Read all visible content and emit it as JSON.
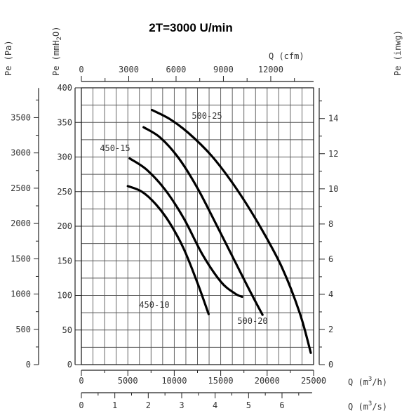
{
  "chart_data": {
    "type": "line",
    "title": "2T=3000 U/min",
    "axes": {
      "left_outer": {
        "label": "Pe (Pa)",
        "ticks": [
          "0",
          "500",
          "1000",
          "1500",
          "2000",
          "2500",
          "3000",
          "3500"
        ]
      },
      "left_inner": {
        "label": "Pe (mmH2O)",
        "label_main": "Pe (mmH",
        "label_sub": "2",
        "label_end": "O)",
        "ticks": [
          "0",
          "50",
          "100",
          "150",
          "200",
          "250",
          "300",
          "350",
          "400"
        ],
        "ylim": [
          0,
          400
        ]
      },
      "right": {
        "label": "Pe (inwg)",
        "ticks": [
          "0",
          "2",
          "4",
          "6",
          "8",
          "10",
          "12",
          "14"
        ]
      },
      "top": {
        "label": "Q (cfm)",
        "ticks": [
          "0",
          "3000",
          "6000",
          "9000",
          "12000"
        ]
      },
      "bottom_1": {
        "label": "Q (m3/h)",
        "label_main": "Q (m",
        "label_sup": "3",
        "label_end": "/h)",
        "ticks": [
          "0",
          "5000",
          "10000",
          "15000",
          "20000",
          "25000"
        ],
        "xlim": [
          0,
          25000
        ]
      },
      "bottom_2": {
        "label": "Q (m3/s)",
        "label_main": "Q (m",
        "label_sup": "3",
        "label_end": "/s)",
        "ticks": [
          "0",
          "1",
          "2",
          "3",
          "4",
          "5",
          "6"
        ]
      }
    },
    "grid": true,
    "x_unit": "m3/h",
    "y_unit": "mmH2O",
    "series": [
      {
        "name": "450-10",
        "x": [
          5000,
          6500,
          8000,
          9500,
          11000,
          12500,
          13700
        ],
        "y": [
          258,
          250,
          232,
          205,
          168,
          118,
          73
        ]
      },
      {
        "name": "450-15",
        "x": [
          5200,
          7000,
          9000,
          11000,
          13000,
          15000,
          16500,
          17300
        ],
        "y": [
          298,
          282,
          253,
          212,
          160,
          120,
          103,
          98
        ]
      },
      {
        "name": "500-20",
        "x": [
          6700,
          8500,
          10500,
          12500,
          14500,
          16500,
          18200,
          19500
        ],
        "y": [
          343,
          328,
          298,
          255,
          203,
          150,
          105,
          72
        ]
      },
      {
        "name": "500-25",
        "x": [
          7600,
          9500,
          11500,
          14000,
          16500,
          19000,
          21500,
          23500,
          24700
        ],
        "y": [
          368,
          355,
          335,
          302,
          258,
          205,
          143,
          75,
          17
        ]
      }
    ]
  }
}
